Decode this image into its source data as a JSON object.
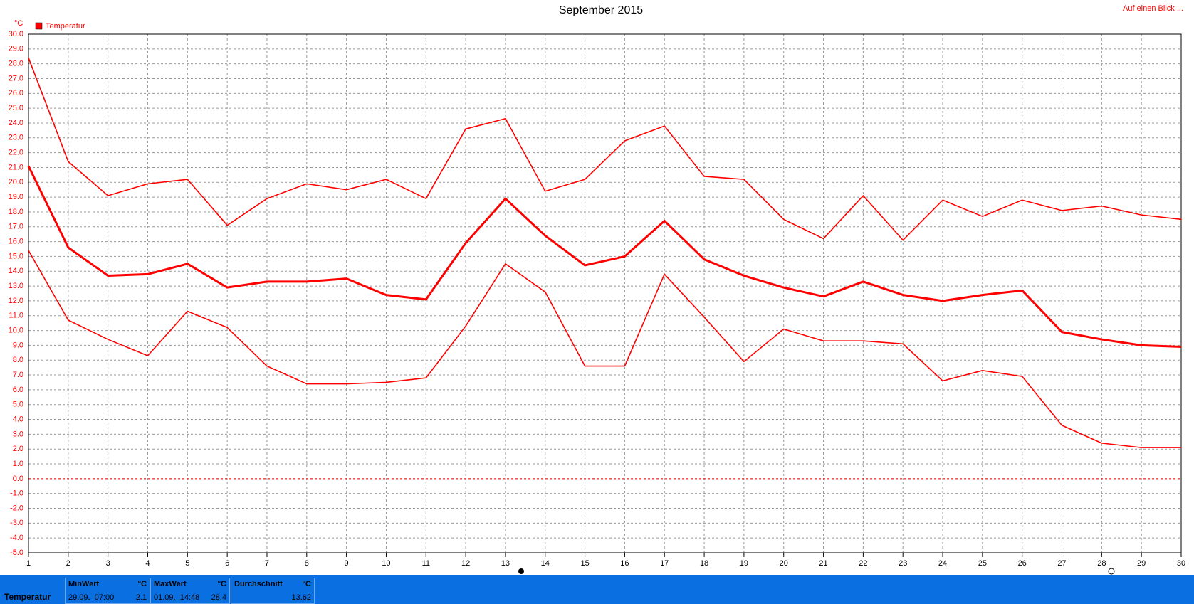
{
  "chart_data": {
    "type": "line",
    "title": "September 2015",
    "y_unit": "°C",
    "link": "Auf einen Blick ...",
    "legend": {
      "label": "Temperatur",
      "color": "#ff0000"
    },
    "x": [
      1,
      2,
      3,
      4,
      5,
      6,
      7,
      8,
      9,
      10,
      11,
      12,
      13,
      14,
      15,
      16,
      17,
      18,
      19,
      20,
      21,
      22,
      23,
      24,
      25,
      26,
      27,
      28,
      29,
      30
    ],
    "xlim": [
      1,
      30
    ],
    "xticks": [
      1,
      2,
      3,
      4,
      5,
      6,
      7,
      8,
      9,
      10,
      11,
      12,
      13,
      14,
      15,
      16,
      17,
      18,
      19,
      20,
      21,
      22,
      23,
      24,
      25,
      26,
      27,
      28,
      29,
      30
    ],
    "ylim": [
      -5,
      30
    ],
    "yticks": [
      {
        "value": -5,
        "label": "-5.0"
      },
      {
        "value": -4,
        "label": "-4.0"
      },
      {
        "value": -3,
        "label": "-3.0"
      },
      {
        "value": -2,
        "label": "-2.0"
      },
      {
        "value": -1,
        "label": "-1.0"
      },
      {
        "value": 0,
        "label": "0.0"
      },
      {
        "value": 1,
        "label": "1.0"
      },
      {
        "value": 2,
        "label": "2.0"
      },
      {
        "value": 3,
        "label": "3.0"
      },
      {
        "value": 4,
        "label": "4.0"
      },
      {
        "value": 5,
        "label": "5.0"
      },
      {
        "value": 6,
        "label": "6.0"
      },
      {
        "value": 7,
        "label": "7.0"
      },
      {
        "value": 8,
        "label": "8.0"
      },
      {
        "value": 9,
        "label": "9.0"
      },
      {
        "value": 10,
        "label": "10.0"
      },
      {
        "value": 11,
        "label": "11.0"
      },
      {
        "value": 12,
        "label": "12.0"
      },
      {
        "value": 13,
        "label": "13.0"
      },
      {
        "value": 14,
        "label": "14.0"
      },
      {
        "value": 15,
        "label": "15.0"
      },
      {
        "value": 16,
        "label": "16.0"
      },
      {
        "value": 17,
        "label": "17.0"
      },
      {
        "value": 18,
        "label": "18.0"
      },
      {
        "value": 19,
        "label": "19.0"
      },
      {
        "value": 20,
        "label": "20.0"
      },
      {
        "value": 21,
        "label": "21.0"
      },
      {
        "value": 22,
        "label": "22.0"
      },
      {
        "value": 23,
        "label": "23.0"
      },
      {
        "value": 24,
        "label": "24.0"
      },
      {
        "value": 25,
        "label": "25.0"
      },
      {
        "value": 26,
        "label": "26.0"
      },
      {
        "value": 27,
        "label": "27.0"
      },
      {
        "value": 28,
        "label": "28.0"
      },
      {
        "value": 29,
        "label": "29.0"
      },
      {
        "value": 30,
        "label": "30.0"
      }
    ],
    "grid": true,
    "series": [
      {
        "color": "#ff0000",
        "values": [
          28.4,
          21.4,
          19.1,
          19.9,
          20.2,
          17.1,
          18.9,
          19.9,
          19.5,
          20.2,
          18.9,
          23.6,
          24.3,
          19.4,
          20.2,
          22.8,
          23.8,
          20.4,
          20.2,
          17.5,
          16.2,
          19.1,
          16.1,
          18.8,
          17.7,
          18.8,
          18.1,
          18.4,
          17.8,
          17.5
        ]
      },
      {
        "color": "#ff0000",
        "values": [
          21.1,
          15.6,
          13.7,
          13.8,
          14.5,
          12.9,
          13.3,
          13.3,
          13.5,
          12.4,
          12.1,
          15.9,
          18.9,
          16.4,
          14.4,
          15.0,
          17.4,
          14.8,
          13.7,
          12.9,
          12.3,
          13.3,
          12.4,
          12.0,
          12.4,
          12.7,
          9.9,
          9.4,
          9.0,
          8.9
        ]
      },
      {
        "color": "#ff0000",
        "values": [
          15.4,
          10.7,
          9.4,
          8.3,
          11.3,
          10.2,
          7.6,
          6.4,
          6.4,
          6.5,
          6.8,
          10.3,
          14.5,
          12.6,
          7.6,
          7.6,
          13.8,
          10.9,
          7.9,
          10.1,
          9.3,
          9.3,
          9.1,
          6.6,
          7.3,
          6.9,
          3.6,
          2.4,
          2.1,
          2.1
        ]
      }
    ]
  },
  "footer": {
    "label": "Temperatur",
    "panels": [
      {
        "title": "MinWert",
        "unit": "°C",
        "time": "29.09.  07:00",
        "value": 2.1
      },
      {
        "title": "MaxWert",
        "unit": "°C",
        "time": "01.09.  14:48",
        "value": 28.4
      },
      {
        "title": "Durchschnitt",
        "unit": "°C",
        "value": 13.62
      }
    ]
  }
}
